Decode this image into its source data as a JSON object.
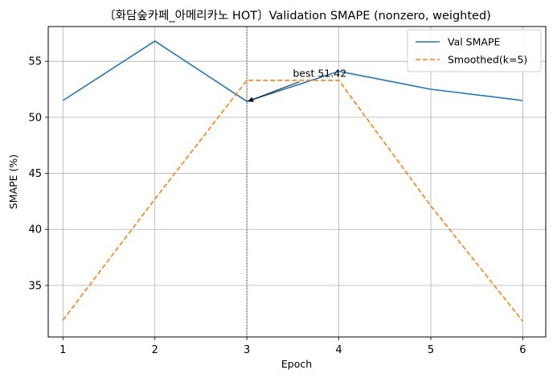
{
  "chart_data": {
    "type": "line",
    "title": "〔화담숲카페_아메리카노 HOT〕Validation SMAPE (nonzero, weighted)",
    "xlabel": "Epoch",
    "ylabel": "SMAPE (%)",
    "x": [
      1,
      2,
      3,
      4,
      5,
      6
    ],
    "xticks": [
      "1",
      "2",
      "3",
      "4",
      "5",
      "6"
    ],
    "yticks": [
      "35",
      "40",
      "45",
      "50",
      "55"
    ],
    "xlim": [
      0.84,
      6.25
    ],
    "ylim": [
      30.4,
      58.1
    ],
    "grid": true,
    "legend_position": "top-right",
    "series": [
      {
        "name": "Val SMAPE",
        "values": [
          51.5,
          56.8,
          51.42,
          54.1,
          52.5,
          51.5
        ],
        "color": "#1f77b4",
        "style": "solid"
      },
      {
        "name": "Smoothed(k=5)",
        "values": [
          31.9,
          42.7,
          53.3,
          53.3,
          42.1,
          31.8
        ],
        "color": "#ff7f0e",
        "style": "dashed"
      }
    ],
    "best_marker": {
      "x": 3,
      "style": "dotted",
      "color": "#808080"
    },
    "annotation": {
      "text": "best 51.42",
      "x": 3,
      "y": 51.42,
      "text_x": 3.5,
      "text_y": 53.6
    }
  }
}
